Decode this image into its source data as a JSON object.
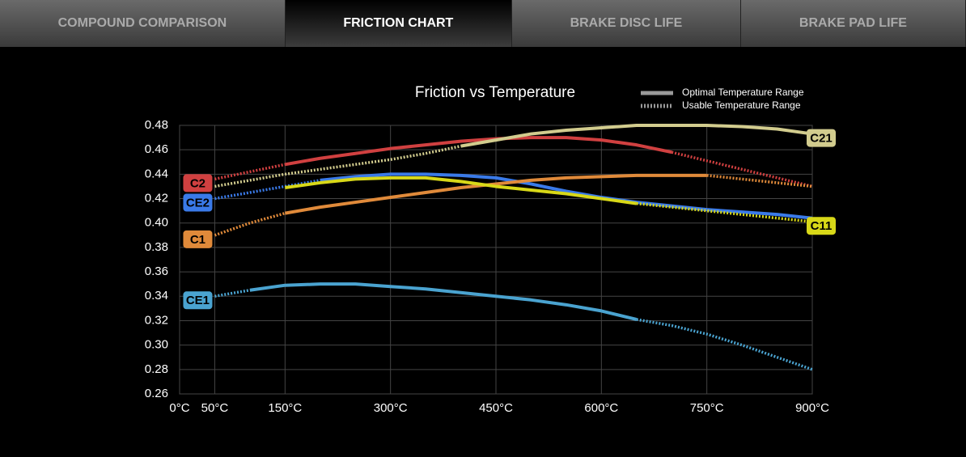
{
  "tabs": [
    "COMPOUND COMPARISON",
    "FRICTION CHART",
    "BRAKE DISC LIFE",
    "BRAKE PAD LIFE"
  ],
  "active_tab": 1,
  "chart_data": {
    "type": "line",
    "title": "Friction vs Temperature",
    "legend": [
      "Optimal Temperature Range",
      "Usable Temperature Range"
    ],
    "x": [
      50,
      100,
      150,
      200,
      250,
      300,
      350,
      400,
      450,
      500,
      550,
      600,
      650,
      700,
      750,
      800,
      850,
      900
    ],
    "xlim": [
      0,
      900
    ],
    "xticks": [
      {
        "value": 0,
        "label": "0°C"
      },
      {
        "value": 50,
        "label": "50°C"
      },
      {
        "value": 150,
        "label": "150°C"
      },
      {
        "value": 300,
        "label": "300°C"
      },
      {
        "value": 450,
        "label": "450°C"
      },
      {
        "value": 600,
        "label": "600°C"
      },
      {
        "value": 750,
        "label": "750°C"
      },
      {
        "value": 900,
        "label": "900°C"
      }
    ],
    "ylim": [
      0.26,
      0.48
    ],
    "yticks": [
      0.26,
      0.28,
      {
        "value": 0.3,
        "label": "0.30"
      },
      0.32,
      0.34,
      0.36,
      0.38,
      {
        "value": 0.4,
        "label": "0.40"
      },
      0.42,
      0.44,
      0.46,
      0.48
    ],
    "grid": true,
    "series": [
      {
        "name": "C2",
        "color": "#d04040",
        "label_side": "left",
        "optimal_range": [
          150,
          700
        ],
        "values": [
          0.436,
          0.442,
          0.448,
          0.453,
          0.457,
          0.461,
          0.464,
          0.467,
          0.469,
          0.47,
          0.47,
          0.468,
          0.464,
          0.458,
          0.451,
          0.444,
          0.437,
          0.43
        ]
      },
      {
        "name": "CE2",
        "color": "#3a7ae8",
        "label_side": "left",
        "optimal_range": [
          200,
          900
        ],
        "values": [
          0.42,
          0.425,
          0.43,
          0.435,
          0.438,
          0.44,
          0.44,
          0.439,
          0.437,
          0.432,
          0.426,
          0.421,
          0.417,
          0.414,
          0.411,
          0.409,
          0.407,
          0.404
        ]
      },
      {
        "name": "C1",
        "color": "#e08a3a",
        "label_side": "left",
        "optimal_range": [
          150,
          750
        ],
        "values": [
          0.39,
          0.4,
          0.408,
          0.413,
          0.417,
          0.421,
          0.425,
          0.429,
          0.432,
          0.435,
          0.437,
          0.438,
          0.439,
          0.439,
          0.439,
          0.436,
          0.433,
          0.43
        ]
      },
      {
        "name": "CE1",
        "color": "#4aa3d0",
        "label_side": "left",
        "optimal_range": [
          100,
          650
        ],
        "values": [
          0.34,
          0.345,
          0.349,
          0.35,
          0.35,
          0.348,
          0.346,
          0.343,
          0.34,
          0.337,
          0.333,
          0.328,
          0.321,
          0.316,
          0.309,
          0.3,
          0.29,
          0.28
        ]
      },
      {
        "name": "C21",
        "color": "#d2cc8e",
        "label_side": "right",
        "optimal_range": [
          400,
          900
        ],
        "values": [
          0.43,
          0.435,
          0.44,
          0.444,
          0.448,
          0.452,
          0.457,
          0.463,
          0.468,
          0.473,
          0.476,
          0.478,
          0.48,
          0.48,
          0.48,
          0.479,
          0.477,
          0.473
        ]
      },
      {
        "name": "C11",
        "color": "#d8d818",
        "label_side": "right",
        "optimal_range": [
          150,
          650
        ],
        "values": [
          null,
          null,
          0.429,
          0.433,
          0.436,
          0.437,
          0.437,
          0.434,
          0.43,
          0.427,
          0.424,
          0.42,
          0.416,
          0.413,
          0.41,
          0.407,
          0.404,
          0.401
        ]
      }
    ]
  }
}
